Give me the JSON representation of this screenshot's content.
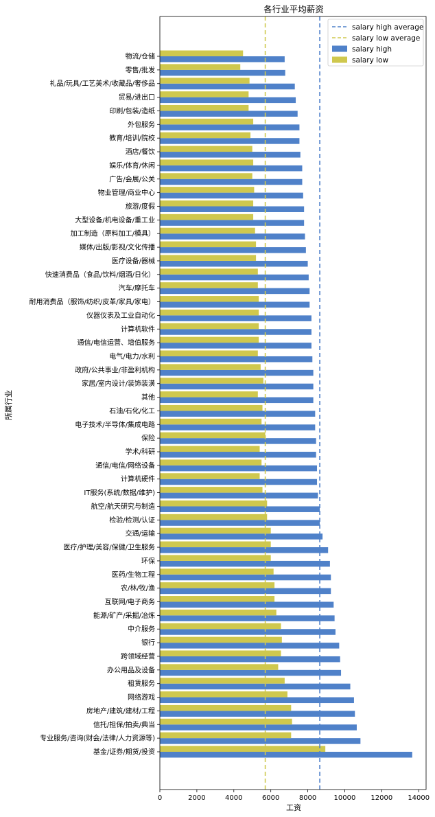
{
  "chart_data": {
    "type": "bar",
    "orientation": "horizontal",
    "title": "各行业平均薪资",
    "xlabel": "工资",
    "ylabel": "所属行业",
    "xlim": [
      0,
      14400
    ],
    "xticks": [
      0,
      2000,
      4000,
      6000,
      8000,
      10000,
      12000,
      14000
    ],
    "grid": false,
    "legend_position": "top-right",
    "categories": [
      "物流/仓储",
      "零售/批发",
      "礼品/玩具/工艺美术/收藏品/奢侈品",
      "贸易/进出口",
      "印刷/包装/造纸",
      "外包服务",
      "教育/培训/院校",
      "酒店/餐饮",
      "娱乐/体育/休闲",
      "广告/会展/公关",
      "物业管理/商业中心",
      "旅游/度假",
      "大型设备/机电设备/重工业",
      "加工制造（原料加工/模具）",
      "媒体/出版/影视/文化传播",
      "医疗设备/器械",
      "快速消费品（食品/饮料/烟酒/日化）",
      "汽车/摩托车",
      "耐用消费品（服饰/纺织/皮革/家具/家电）",
      "仪器仪表及工业自动化",
      "计算机软件",
      "通信/电信运营、增值服务",
      "电气/电力/水利",
      "政府/公共事业/非盈利机构",
      "家居/室内设计/装饰装潢",
      "其他",
      "石油/石化/化工",
      "电子技术/半导体/集成电路",
      "保险",
      "学术/科研",
      "通信/电信/网络设备",
      "计算机硬件",
      "IT服务(系统/数据/维护)",
      "航空/航天研究与制造",
      "检验/检测/认证",
      "交通/运输",
      "医疗/护理/美容/保健/卫生服务",
      "环保",
      "医药/生物工程",
      "农/林/牧/渔",
      "互联网/电子商务",
      "能源/矿产/采掘/冶炼",
      "中介服务",
      "银行",
      "跨领域经营",
      "办公用品及设备",
      "租赁服务",
      "网络游戏",
      "房地产/建筑/建材/工程",
      "信托/担保/拍卖/典当",
      "专业服务/咨询(财会/法律/人力资源等)",
      "基金/证券/期货/投资"
    ],
    "series": [
      {
        "name": "salary high",
        "color": "#4f81c9",
        "values": [
          6750,
          6780,
          7300,
          7350,
          7450,
          7550,
          7550,
          7600,
          7700,
          7700,
          7750,
          7800,
          7800,
          7850,
          7900,
          8000,
          8050,
          8100,
          8100,
          8200,
          8200,
          8200,
          8250,
          8300,
          8300,
          8300,
          8400,
          8400,
          8450,
          8450,
          8500,
          8500,
          8550,
          8650,
          8650,
          8800,
          9100,
          9200,
          9250,
          9250,
          9400,
          9450,
          9500,
          9700,
          9750,
          9800,
          10300,
          10500,
          10550,
          10650,
          10850,
          13650
        ]
      },
      {
        "name": "salary low",
        "color": "#cfc84e",
        "values": [
          4500,
          4350,
          4850,
          4800,
          4800,
          5050,
          4900,
          5000,
          5050,
          5000,
          5100,
          5050,
          5050,
          5150,
          5200,
          5200,
          5300,
          5300,
          5350,
          5350,
          5350,
          5350,
          5300,
          5450,
          5600,
          5300,
          5550,
          5500,
          5700,
          5400,
          5500,
          5400,
          5550,
          5800,
          5800,
          6000,
          6000,
          6000,
          6150,
          6200,
          6200,
          6300,
          6550,
          6600,
          6550,
          6400,
          6750,
          6900,
          7100,
          7150,
          7100,
          8950
        ]
      }
    ],
    "reference_lines": [
      {
        "name": "salary high average",
        "value": 8650,
        "color": "#4f81c9",
        "style": "dashed"
      },
      {
        "name": "salary low average",
        "value": 5700,
        "color": "#cfc84e",
        "style": "dashed"
      }
    ]
  }
}
